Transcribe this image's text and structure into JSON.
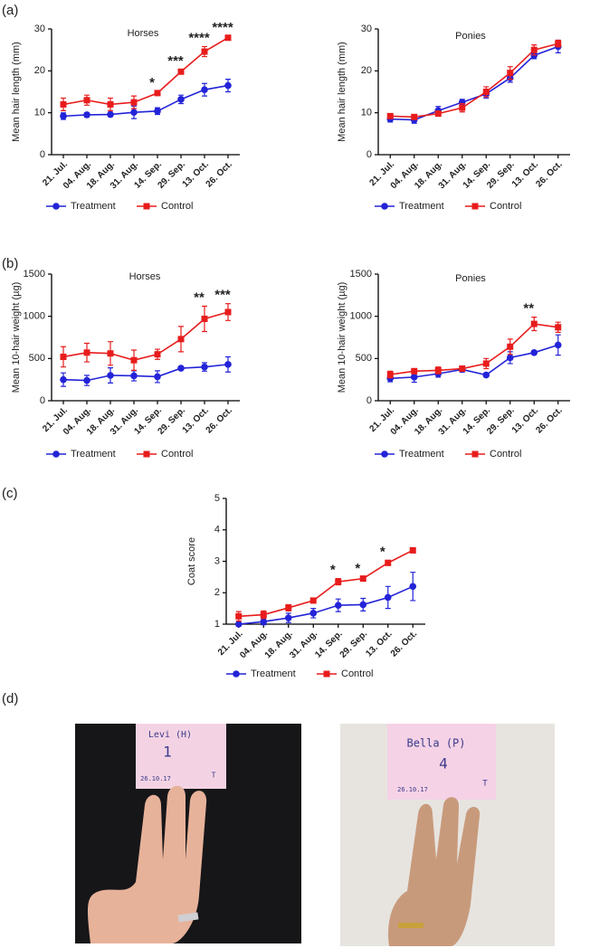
{
  "panel_labels": [
    "(a)",
    "(b)",
    "(c)",
    "(d)"
  ],
  "chart_data": [
    {
      "type": "line",
      "title": "Horses",
      "y_label": "Mean hair length (mm)",
      "categories": [
        "21. Jul.",
        "04. Aug.",
        "18. Aug.",
        "31. Aug.",
        "14. Sep.",
        "29. Sep.",
        "13. Oct.",
        "26. Oct."
      ],
      "ylim": [
        0,
        30
      ],
      "yticks": [
        0,
        10,
        20,
        30
      ],
      "series": [
        {
          "name": "Treatment",
          "color": "#2323d8",
          "marker": "circle",
          "values": [
            9.2,
            9.5,
            9.6,
            10.1,
            10.4,
            13.2,
            15.5,
            16.5
          ],
          "errors": [
            0.8,
            0.5,
            0.5,
            1.5,
            0.8,
            1.0,
            1.5,
            1.5
          ]
        },
        {
          "name": "Control",
          "color": "#e81c1c",
          "marker": "square",
          "values": [
            12,
            13,
            12,
            12.5,
            14.7,
            19.8,
            24.6,
            27.9
          ],
          "errors": [
            1.5,
            1.2,
            1.5,
            1.5,
            0.4,
            0.5,
            1.2,
            0.4
          ]
        }
      ],
      "annotations": [
        {
          "x": "14. Sep.",
          "text": "*"
        },
        {
          "x": "29. Sep.",
          "text": "***"
        },
        {
          "x": "13. Oct.",
          "text": "****"
        },
        {
          "x": "26. Oct.",
          "text": "****"
        }
      ]
    },
    {
      "type": "line",
      "title": "Ponies",
      "y_label": "Mean hair length (mm)",
      "categories": [
        "21. Jul.",
        "04. Aug.",
        "18. Aug.",
        "31. Aug.",
        "14. Sep.",
        "29. Sep.",
        "13. Oct.",
        "26. Oct."
      ],
      "ylim": [
        0,
        30
      ],
      "yticks": [
        0,
        10,
        20,
        30
      ],
      "series": [
        {
          "name": "Treatment",
          "color": "#2323d8",
          "marker": "circle",
          "values": [
            8.5,
            8.3,
            10.5,
            12.5,
            14.5,
            18.3,
            23.7,
            25.8
          ],
          "errors": [
            0.7,
            0.8,
            1.0,
            0.7,
            1.0,
            1.0,
            0.8,
            1.5
          ]
        },
        {
          "name": "Control",
          "color": "#e81c1c",
          "marker": "square",
          "values": [
            9.2,
            9,
            9.8,
            11.2,
            15,
            19.5,
            25,
            26.5
          ],
          "errors": [
            0.5,
            0.5,
            0.6,
            1.0,
            1.2,
            1.5,
            1.2,
            0.8
          ]
        }
      ]
    },
    {
      "type": "line",
      "title": "Horses",
      "y_label": "Mean 10-hair weight (µg)",
      "categories": [
        "21. Jul.",
        "04. Aug.",
        "18. Aug.",
        "31. Aug.",
        "14. Sep.",
        "29. Sep.",
        "13. Oct.",
        "26. Oct."
      ],
      "ylim": [
        0,
        1500
      ],
      "yticks": [
        0,
        500,
        1000,
        1500
      ],
      "series": [
        {
          "name": "Treatment",
          "color": "#2323d8",
          "marker": "circle",
          "values": [
            250,
            240,
            300,
            295,
            285,
            385,
            400,
            430
          ],
          "errors": [
            80,
            60,
            90,
            60,
            70,
            20,
            50,
            90
          ]
        },
        {
          "name": "Control",
          "color": "#e81c1c",
          "marker": "square",
          "values": [
            520,
            570,
            560,
            480,
            550,
            730,
            970,
            1050
          ],
          "errors": [
            120,
            110,
            140,
            120,
            60,
            150,
            150,
            100
          ]
        }
      ],
      "annotations": [
        {
          "x": "13. Oct.",
          "text": "**"
        },
        {
          "x": "26. Oct.",
          "text": "***"
        }
      ]
    },
    {
      "type": "line",
      "title": "Ponies",
      "y_label": "Mean 10-hair weight (µg)",
      "categories": [
        "21. Jul.",
        "04. Aug.",
        "18. Aug.",
        "31. Aug.",
        "14. Sep.",
        "29. Sep.",
        "13. Oct.",
        "26. Oct."
      ],
      "ylim": [
        0,
        1500
      ],
      "yticks": [
        0,
        500,
        1000,
        1500
      ],
      "series": [
        {
          "name": "Treatment",
          "color": "#2323d8",
          "marker": "circle",
          "values": [
            265,
            280,
            320,
            370,
            305,
            510,
            570,
            660
          ],
          "errors": [
            40,
            60,
            40,
            30,
            20,
            70,
            20,
            120
          ]
        },
        {
          "name": "Control",
          "color": "#e81c1c",
          "marker": "square",
          "values": [
            310,
            350,
            360,
            380,
            440,
            640,
            910,
            870
          ],
          "errors": [
            40,
            30,
            40,
            30,
            60,
            90,
            80,
            60
          ]
        }
      ],
      "annotations": [
        {
          "x": "13. Oct.",
          "text": "**"
        }
      ]
    },
    {
      "type": "line",
      "y_label": "Coat score",
      "categories": [
        "21. Jul.",
        "04. Aug.",
        "18. Aug.",
        "31. Aug.",
        "14. Sep.",
        "29. Sep.",
        "13. Oct.",
        "26. Oct."
      ],
      "ylim": [
        1,
        5
      ],
      "yticks": [
        1,
        2,
        3,
        4,
        5
      ],
      "series": [
        {
          "name": "Treatment",
          "color": "#2323d8",
          "marker": "circle",
          "values": [
            1.0,
            1.08,
            1.2,
            1.35,
            1.6,
            1.62,
            1.85,
            2.2
          ],
          "errors": [
            0.05,
            0.1,
            0.15,
            0.15,
            0.2,
            0.2,
            0.35,
            0.45
          ]
        },
        {
          "name": "Control",
          "color": "#e81c1c",
          "marker": "square",
          "values": [
            1.25,
            1.3,
            1.52,
            1.75,
            2.35,
            2.45,
            2.95,
            3.35
          ],
          "errors": [
            0.15,
            0.12,
            0.1,
            0.05,
            0.1,
            0.05,
            0.08,
            0.08
          ]
        }
      ],
      "annotations": [
        {
          "x": "14. Sep.",
          "text": "*"
        },
        {
          "x": "29. Sep.",
          "text": "*"
        },
        {
          "x": "13. Oct.",
          "text": "*"
        }
      ]
    }
  ],
  "photos": [
    {
      "lines": [
        "Levi (H)",
        "1",
        "26.10.17",
        "T"
      ]
    },
    {
      "lines": [
        "Bella (P)",
        "4",
        "26.10.17",
        "T"
      ]
    }
  ]
}
